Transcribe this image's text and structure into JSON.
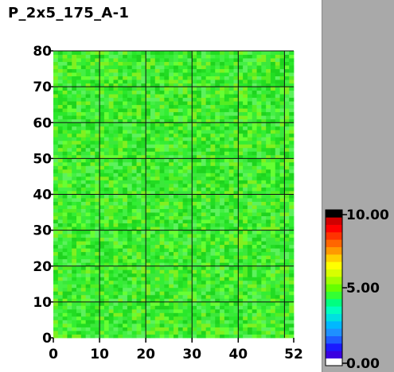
{
  "chart_data": {
    "type": "heatmap",
    "title": "P_2x5_175_A-1",
    "x": {
      "min": 0,
      "max": 52,
      "ticks": [
        0,
        10,
        20,
        30,
        40,
        52
      ],
      "tick_labels": [
        "0",
        "10",
        "20",
        "30",
        "40",
        "52"
      ]
    },
    "y": {
      "min": 0,
      "max": 80,
      "ticks": [
        0,
        10,
        20,
        30,
        40,
        50,
        60,
        70,
        80
      ],
      "tick_labels": [
        "0",
        "10",
        "20",
        "30",
        "40",
        "50",
        "60",
        "70",
        "80"
      ]
    },
    "grid": true,
    "grid_x_values": [
      10,
      20,
      30,
      40,
      50
    ],
    "grid_y_values": [
      10,
      20,
      30,
      40,
      50,
      60,
      70,
      80
    ],
    "cells": {
      "nx": 52,
      "ny": 80,
      "value_min": 4.6,
      "value_max": 5.6,
      "typical": 5.0
    },
    "colorbar": {
      "min": 0,
      "max": 10,
      "tick_labels": [
        "10.00",
        "5.00",
        "0.00"
      ],
      "tick_values": [
        10,
        5,
        0
      ],
      "colors": [
        "#ffffff",
        "#3a00e0",
        "#1a1aff",
        "#1e5cff",
        "#1e90ff",
        "#00b8ff",
        "#00e0e0",
        "#00ffbf",
        "#00ff80",
        "#33ff33",
        "#66ff00",
        "#a0ff00",
        "#d8ff00",
        "#ffff00",
        "#ffd000",
        "#ff9900",
        "#ff6600",
        "#ff3300",
        "#ff0000",
        "#d00000",
        "#000000"
      ],
      "placement": "right"
    }
  }
}
